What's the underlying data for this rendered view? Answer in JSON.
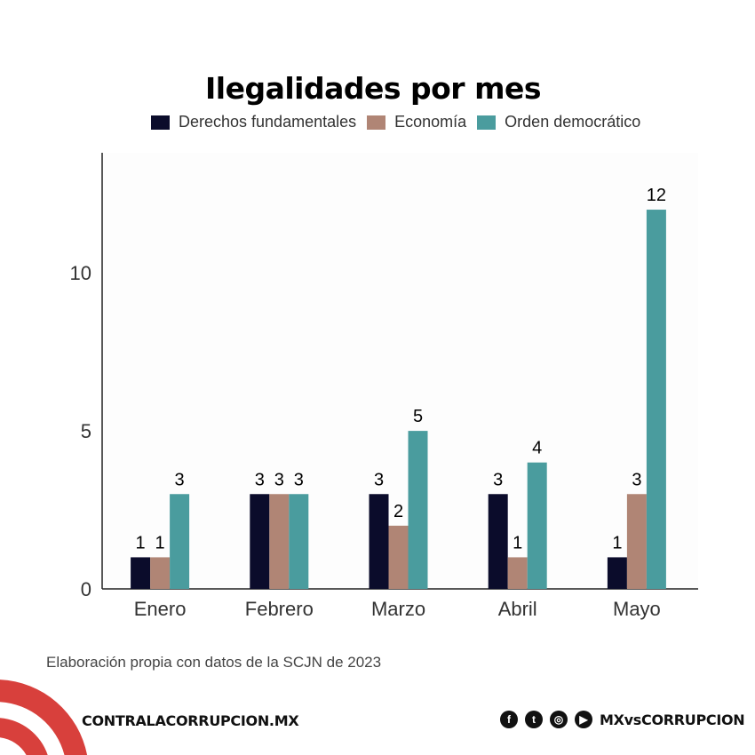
{
  "chart_data": {
    "type": "bar",
    "title": "Ilegalidades por mes",
    "categories": [
      "Enero",
      "Febrero",
      "Marzo",
      "Abril",
      "Mayo"
    ],
    "series": [
      {
        "name": "Derechos fundamentales",
        "color": "#0b0c2b",
        "values": [
          1,
          3,
          3,
          3,
          1
        ]
      },
      {
        "name": "Economía",
        "color": "#b08575",
        "values": [
          1,
          3,
          2,
          1,
          3
        ]
      },
      {
        "name": "Orden democrático",
        "color": "#4a9c9e",
        "values": [
          3,
          3,
          5,
          4,
          12
        ]
      }
    ],
    "yticks": [
      0,
      5,
      10
    ],
    "ylim": [
      0,
      13.8
    ],
    "legend": "top",
    "grid": false
  },
  "source": "Elaboración propia con datos de la SCJN de 2023",
  "footer": {
    "site": "CONTRALACORRUPCION.MX",
    "handle": "MXvsCORRUPCION",
    "brand_color": "#d8403c",
    "icons": [
      "facebook-icon",
      "twitter-icon",
      "instagram-icon",
      "youtube-icon"
    ]
  }
}
